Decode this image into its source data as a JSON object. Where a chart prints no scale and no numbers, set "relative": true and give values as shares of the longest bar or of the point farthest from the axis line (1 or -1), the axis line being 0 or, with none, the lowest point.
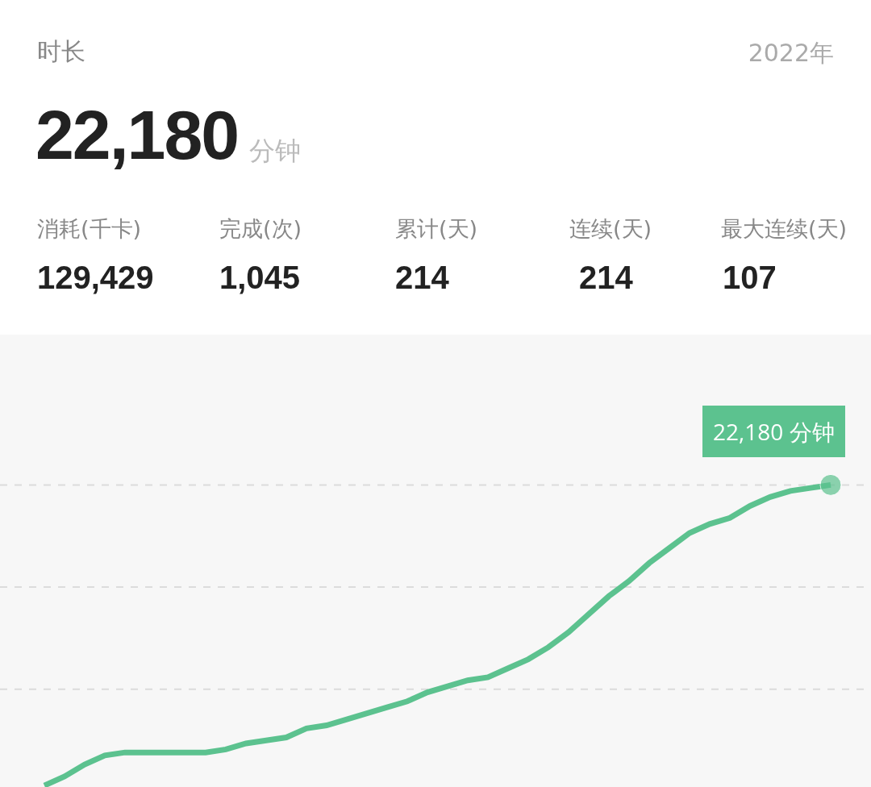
{
  "chart_data": {
    "type": "line",
    "title": "时长",
    "relative": true,
    "marker": "none",
    "ref_lines": [
      {
        "axis": "y",
        "value": 1,
        "color": "#dcdcdc",
        "line_style": "dashed"
      },
      {
        "axis": "y",
        "value": 0.66,
        "color": "#dcdcdc",
        "line_style": "dashed"
      },
      {
        "axis": "y",
        "value": 0.32,
        "color": "#dcdcdc",
        "line_style": "dashed"
      }
    ],
    "line_style": "solid",
    "annotations": [
      "2022年",
      "22,180",
      "分钟",
      "消耗(千卡)",
      "129,429",
      "完成(次)",
      "1,045",
      "累计(天)",
      "214",
      "连续(天)",
      "214",
      "最大连续(天)",
      "107",
      "22,180 分钟"
    ],
    "categories": [
      null,
      null,
      null,
      null,
      null,
      null,
      null,
      null,
      null,
      null,
      null,
      null,
      null,
      null,
      null,
      null,
      null,
      null,
      null,
      null,
      null,
      null,
      null,
      null,
      null,
      null,
      null,
      null,
      null,
      null,
      null,
      null,
      null,
      null,
      null,
      null,
      null,
      null,
      null,
      null
    ],
    "series": [
      {
        "color": "#5cc28f",
        "values": [
          0,
          0.03,
          0.07,
          0.1,
          0.11,
          0.11,
          0.11,
          0.11,
          0.11,
          0.12,
          0.14,
          0.15,
          0.16,
          0.19,
          0.2,
          0.22,
          0.24,
          0.26,
          0.28,
          0.31,
          0.33,
          0.35,
          0.36,
          0.39,
          0.42,
          0.46,
          0.51,
          0.57,
          0.63,
          0.68,
          0.74,
          0.79,
          0.84,
          0.87,
          0.89,
          0.93,
          0.96,
          0.98,
          0.99,
          1
        ]
      }
    ]
  }
}
